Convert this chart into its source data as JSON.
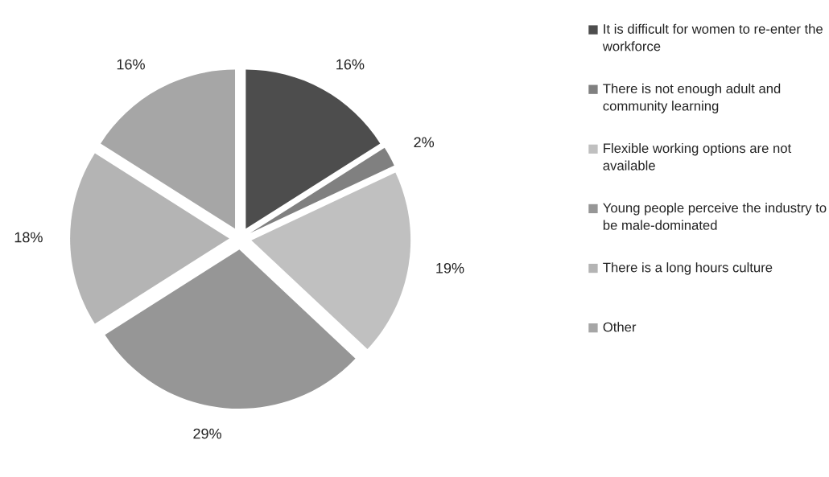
{
  "chart_data": {
    "type": "pie",
    "categories": [
      "It is difficult for women to re-enter the workforce",
      "There is not enough adult and community learning",
      "Flexible working options are not available",
      "Young people perceive the industry to be male-dominated",
      "There is a long hours culture",
      "Other"
    ],
    "values": [
      16,
      2,
      19,
      29,
      18,
      16
    ],
    "value_labels": [
      "16%",
      "2%",
      "19%",
      "29%",
      "18%",
      "16%"
    ],
    "colors": [
      "#4d4d4d",
      "#808080",
      "#c0c0c0",
      "#969696",
      "#b4b4b4",
      "#a6a6a6"
    ],
    "legend": "right"
  }
}
